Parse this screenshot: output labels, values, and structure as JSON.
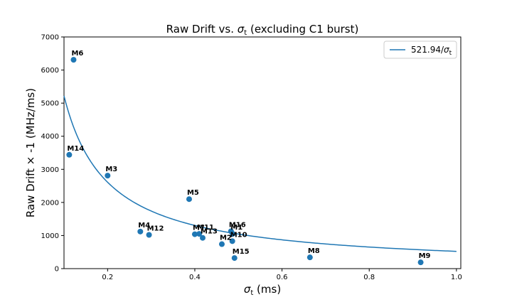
{
  "chart_data": {
    "type": "scatter",
    "title_main": "Raw Drift vs. ",
    "title_sym": "σ",
    "title_sub": "t",
    "title_tail": " (excluding C1 burst)",
    "xlabel_sym": "σ",
    "xlabel_sub": "t",
    "xlabel_tail": " (ms)",
    "ylabel": "Raw Drift × -1 (MHz/ms)",
    "xlim": [
      0.1,
      1.01
    ],
    "ylim": [
      0,
      7000
    ],
    "xticks": [
      0.2,
      0.4,
      0.6,
      0.8,
      1.0
    ],
    "xtick_labels": [
      "0.2",
      "0.4",
      "0.6",
      "0.8",
      "1.0"
    ],
    "yticks": [
      0,
      1000,
      2000,
      3000,
      4000,
      5000,
      6000,
      7000
    ],
    "ytick_labels": [
      "0",
      "1000",
      "2000",
      "3000",
      "4000",
      "5000",
      "6000",
      "7000"
    ],
    "grid": false,
    "legend_position": "top-right",
    "fit": {
      "coefficient": 521.94,
      "label_main": "521.94/",
      "label_sym": "σ",
      "label_sub": "t",
      "color": "#1f77b4"
    },
    "point_color": "#1f77b4",
    "points": [
      {
        "label": "M6",
        "x": 0.122,
        "y": 6310
      },
      {
        "label": "M14",
        "x": 0.112,
        "y": 3440
      },
      {
        "label": "M3",
        "x": 0.2,
        "y": 2810
      },
      {
        "label": "M5",
        "x": 0.387,
        "y": 2100
      },
      {
        "label": "M4",
        "x": 0.275,
        "y": 1120
      },
      {
        "label": "M12",
        "x": 0.295,
        "y": 1020
      },
      {
        "label": "M7",
        "x": 0.4,
        "y": 1040
      },
      {
        "label": "M11",
        "x": 0.41,
        "y": 1050
      },
      {
        "label": "M13",
        "x": 0.418,
        "y": 930
      },
      {
        "label": "M16",
        "x": 0.483,
        "y": 1130
      },
      {
        "label": "M1",
        "x": 0.487,
        "y": 1050
      },
      {
        "label": "M10",
        "x": 0.486,
        "y": 830
      },
      {
        "label": "M2",
        "x": 0.462,
        "y": 740
      },
      {
        "label": "M15",
        "x": 0.491,
        "y": 320
      },
      {
        "label": "M8",
        "x": 0.664,
        "y": 340
      },
      {
        "label": "M9",
        "x": 0.918,
        "y": 190
      }
    ]
  }
}
